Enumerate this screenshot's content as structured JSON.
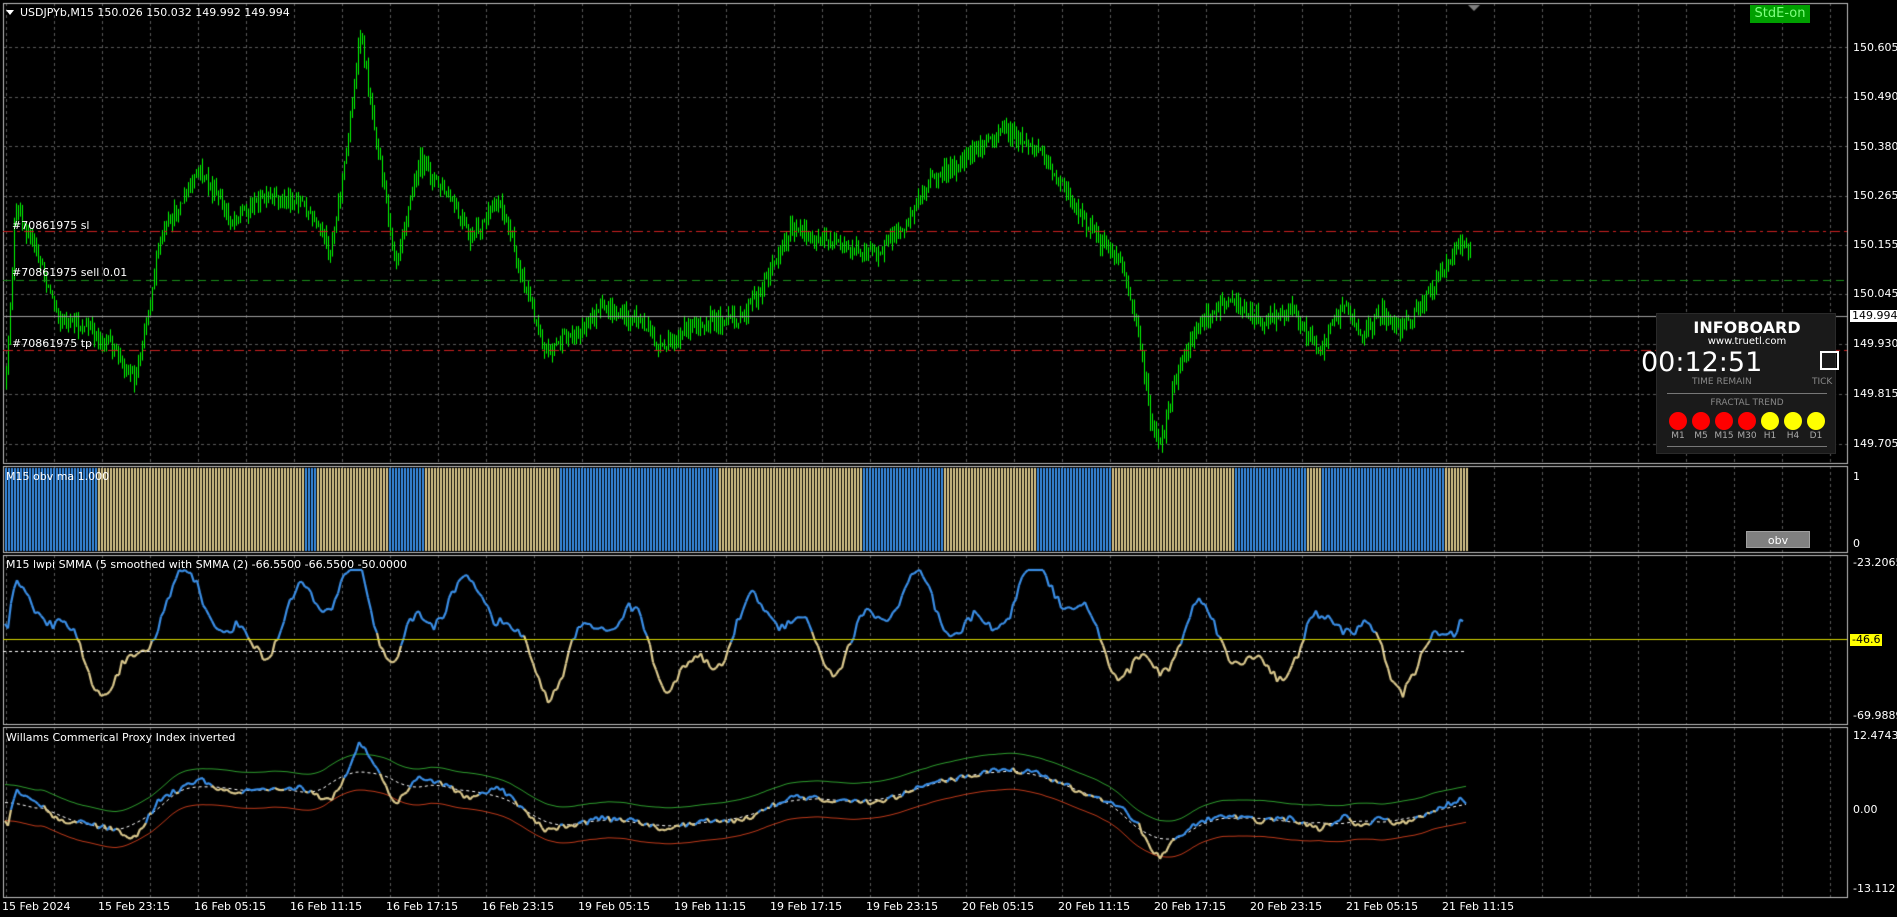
{
  "symbol_header": "USDJPYb,M15  150.026 150.032 149.992 149.994",
  "badge_label": "StdE-on",
  "order_lines": {
    "sl": "#70861975 sl",
    "sell": "#70861975 sell 0.01",
    "tp": "#70861975 tp"
  },
  "price_axis": [
    "150.605",
    "150.490",
    "150.380",
    "150.265",
    "150.155",
    "150.045",
    "149.930",
    "149.815",
    "149.705"
  ],
  "current_price": "149.994",
  "obv_panel": {
    "title": "M15 obv ma 1.000",
    "axis_top": "1",
    "axis_bottom": "0",
    "button_label": "obv"
  },
  "lwpi_panel": {
    "title": "M15 lwpi  SMMA (5 smoothed with  SMMA (2) -66.5500 -66.5500 -50.0000",
    "axis_top": "-23.2065",
    "level_label": "-46.6",
    "axis_bottom": "-69.9889"
  },
  "wcpi_panel": {
    "title": "Willams Commerical Proxy Index inverted",
    "axis_top": "12.4743",
    "axis_mid": "0.00",
    "axis_bottom": "-13.112"
  },
  "time_axis": [
    "15 Feb 2024",
    "15 Feb 23:15",
    "16 Feb 05:15",
    "16 Feb 11:15",
    "16 Feb 17:15",
    "16 Feb 23:15",
    "19 Feb 05:15",
    "19 Feb 11:15",
    "19 Feb 17:15",
    "19 Feb 23:15",
    "20 Feb 05:15",
    "20 Feb 11:15",
    "20 Feb 17:15",
    "20 Feb 23:15",
    "21 Feb 05:15",
    "21 Feb 11:15"
  ],
  "infoboard": {
    "title": "INFOBOARD",
    "url": "www.truetl.com",
    "timer": "00:12:51",
    "timer_caption": "TIME REMAIN",
    "tick_caption": "TICK",
    "fractal_caption": "FRACTAL TREND",
    "timeframes": [
      {
        "label": "M1",
        "color": "#ff0000"
      },
      {
        "label": "M5",
        "color": "#ff0000"
      },
      {
        "label": "M15",
        "color": "#ff0000"
      },
      {
        "label": "M30",
        "color": "#ff0000"
      },
      {
        "label": "H1",
        "color": "#ffff00"
      },
      {
        "label": "H4",
        "color": "#ffff00"
      },
      {
        "label": "D1",
        "color": "#ffff00"
      }
    ]
  },
  "colors": {
    "background": "#000000",
    "grid": "#5a5a5a",
    "candles": "#00ff00",
    "sl_tp_line": "#cc2020",
    "sell_line": "#1a8f1a",
    "oscillator_up": "#3a8ee6",
    "oscillator_down": "#d9c78c"
  }
}
